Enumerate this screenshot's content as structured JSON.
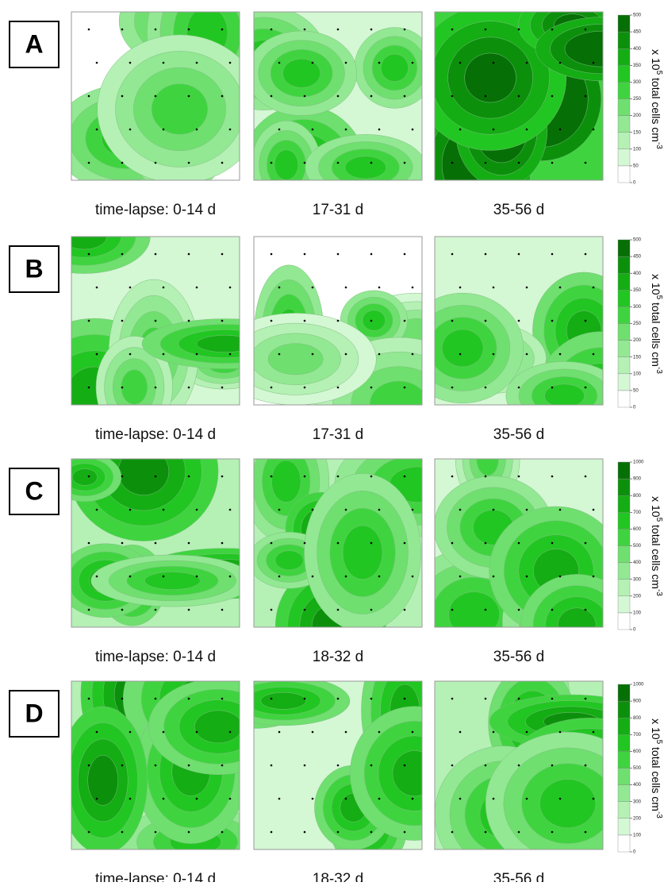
{
  "rows": [
    {
      "label": "A",
      "captions": [
        "time-lapse: 0-14 d",
        "17-31 d",
        "35-56 d"
      ],
      "colorbar_ticks": [
        0,
        50,
        100,
        150,
        200,
        250,
        300,
        350,
        400,
        450,
        500
      ]
    },
    {
      "label": "B",
      "captions": [
        "time-lapse: 0-14 d",
        "17-31 d",
        "35-56 d"
      ],
      "colorbar_ticks": [
        0,
        50,
        100,
        150,
        200,
        250,
        300,
        350,
        400,
        450,
        500
      ]
    },
    {
      "label": "C",
      "captions": [
        "time-lapse: 0-14 d",
        "18-32 d",
        "35-56 d"
      ],
      "colorbar_ticks": [
        0,
        100,
        200,
        300,
        400,
        500,
        600,
        700,
        800,
        900,
        1000
      ]
    },
    {
      "label": "D",
      "captions": [
        "time-lapse: 0-14 d",
        "18-32 d",
        "35-56 d"
      ],
      "colorbar_ticks": [
        0,
        100,
        200,
        300,
        400,
        500,
        600,
        700,
        800,
        900,
        1000
      ]
    }
  ],
  "colorbar_label": {
    "base": "x 10",
    "exp": "5",
    "unit": " total cells cm",
    "unit_exp": "-3"
  },
  "colorbar_colors": [
    "#ffffff",
    "#d4f7d4",
    "#b5f0b5",
    "#93e893",
    "#6fdf6f",
    "#3fd43f",
    "#22c622",
    "#14ad14",
    "#0c900c",
    "#067006"
  ]
}
